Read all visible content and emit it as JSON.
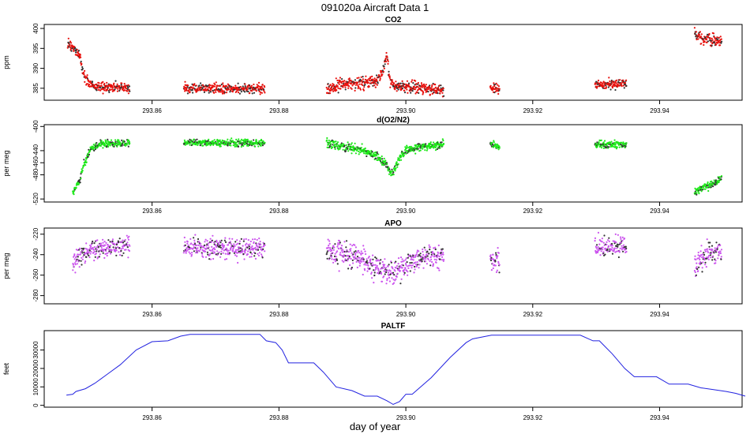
{
  "figure": {
    "title": "091020a   Aircraft Data 1",
    "xlabel": "day of year",
    "xlim": [
      293.843,
      293.953
    ],
    "xticks": [
      "293.86",
      "293.88",
      "293.90",
      "293.92",
      "293.94"
    ],
    "colors": {
      "axis": "#000000",
      "co2": "#e8100c",
      "o2n2": "#1ee81a",
      "apo": "#cc55ee",
      "paltf": "#2222e0"
    }
  },
  "chart_data": [
    {
      "type": "scatter",
      "title": "CO2",
      "ylabel": "ppm",
      "ylim": [
        382,
        401
      ],
      "yticks": [
        "385",
        "390",
        "395",
        "400"
      ],
      "color_key": "co2",
      "series": [
        {
          "name": "CO2",
          "segments": [
            {
              "x0": 293.8467,
              "x1": 293.8565,
              "points": [
                [
                  293.8467,
                  395.8
                ],
                [
                  293.8473,
                  395.3
                ],
                [
                  293.848,
                  394.5
                ],
                [
                  293.8487,
                  393.0
                ],
                [
                  293.849,
                  389.5
                ],
                [
                  293.8495,
                  387.5
                ],
                [
                  293.8505,
                  385.8
                ],
                [
                  293.852,
                  385.2
                ],
                [
                  293.8565,
                  385.0
                ]
              ],
              "noise": 0.6
            },
            {
              "x0": 293.865,
              "x1": 293.8778,
              "points": [
                [
                  293.865,
                  385.0
                ],
                [
                  293.8778,
                  384.9
                ]
              ],
              "noise": 0.6
            },
            {
              "x0": 293.8875,
              "x1": 293.906,
              "points": [
                [
                  293.8875,
                  384.6
                ],
                [
                  293.89,
                  386.0
                ],
                [
                  293.893,
                  386.3
                ],
                [
                  293.8955,
                  387.0
                ],
                [
                  293.8965,
                  389.5
                ],
                [
                  293.897,
                  393.0
                ],
                [
                  293.8975,
                  386.5
                ],
                [
                  293.899,
                  385.5
                ],
                [
                  293.902,
                  385.0
                ],
                [
                  293.906,
                  384.5
                ]
              ],
              "noise": 0.7
            },
            {
              "x0": 293.9133,
              "x1": 293.9148,
              "points": [
                [
                  293.9133,
                  384.7
                ],
                [
                  293.9148,
                  384.9
                ]
              ],
              "noise": 0.6
            },
            {
              "x0": 293.9298,
              "x1": 293.9348,
              "points": [
                [
                  293.9298,
                  385.6
                ],
                [
                  293.9348,
                  386.3
                ]
              ],
              "noise": 0.6
            },
            {
              "x0": 293.9455,
              "x1": 293.9498,
              "points": [
                [
                  293.9455,
                  399.0
                ],
                [
                  293.9465,
                  397.5
                ],
                [
                  293.9498,
                  396.9
                ]
              ],
              "noise": 0.7
            }
          ]
        }
      ]
    },
    {
      "type": "scatter",
      "title": "d(O2/N2)",
      "ylabel": "per meg",
      "ylim": [
        -525,
        -397
      ],
      "yticks": [
        "-520",
        "-480",
        "-460",
        "-440",
        "-400"
      ],
      "color_key": "o2n2",
      "series": [
        {
          "name": "d(O2/N2)",
          "segments": [
            {
              "x0": 293.8475,
              "x1": 293.8565,
              "points": [
                [
                  293.8475,
                  -510.0
                ],
                [
                  293.848,
                  -500.0
                ],
                [
                  293.8487,
                  -488.0
                ],
                [
                  293.849,
                  -470.0
                ],
                [
                  293.8505,
                  -435.0
                ],
                [
                  293.852,
                  -428.0
                ],
                [
                  293.8565,
                  -428.0
                ]
              ],
              "noise": 3.0
            },
            {
              "x0": 293.865,
              "x1": 293.8778,
              "points": [
                [
                  293.865,
                  -427.0
                ],
                [
                  293.8778,
                  -428.0
                ]
              ],
              "noise": 3.0
            },
            {
              "x0": 293.8875,
              "x1": 293.906,
              "points": [
                [
                  293.8875,
                  -428.0
                ],
                [
                  293.89,
                  -433.0
                ],
                [
                  293.8935,
                  -440.0
                ],
                [
                  293.8955,
                  -450.0
                ],
                [
                  293.897,
                  -465.0
                ],
                [
                  293.8978,
                  -480.0
                ],
                [
                  293.899,
                  -452.0
                ],
                [
                  293.9,
                  -440.0
                ],
                [
                  293.903,
                  -432.0
                ],
                [
                  293.906,
                  -430.0
                ]
              ],
              "noise": 3.5
            },
            {
              "x0": 293.9133,
              "x1": 293.9148,
              "points": [
                [
                  293.9133,
                  -430.0
                ],
                [
                  293.9148,
                  -433.0
                ]
              ],
              "noise": 3.0
            },
            {
              "x0": 293.9298,
              "x1": 293.9348,
              "points": [
                [
                  293.9298,
                  -430.0
                ],
                [
                  293.9348,
                  -430.0
                ]
              ],
              "noise": 3.0
            },
            {
              "x0": 293.9455,
              "x1": 293.9498,
              "points": [
                [
                  293.9455,
                  -510.0
                ],
                [
                  293.947,
                  -500.0
                ],
                [
                  293.9485,
                  -495.0
                ],
                [
                  293.9498,
                  -485.0
                ]
              ],
              "noise": 3.0
            }
          ]
        }
      ]
    },
    {
      "type": "scatter",
      "title": "APO",
      "ylabel": "per meg",
      "ylim": [
        -288,
        -214
      ],
      "yticks": [
        "-280",
        "-260",
        "-240",
        "-220"
      ],
      "color_key": "apo",
      "series": [
        {
          "name": "APO",
          "segments": [
            {
              "x0": 293.8475,
              "x1": 293.8565,
              "points": [
                [
                  293.8475,
                  -250.0
                ],
                [
                  293.849,
                  -238.0
                ],
                [
                  293.852,
                  -233.0
                ],
                [
                  293.8565,
                  -232.0
                ]
              ],
              "noise": 5.0
            },
            {
              "x0": 293.865,
              "x1": 293.8778,
              "points": [
                [
                  293.865,
                  -233.0
                ],
                [
                  293.8778,
                  -234.0
                ]
              ],
              "noise": 5.0
            },
            {
              "x0": 293.8875,
              "x1": 293.906,
              "points": [
                [
                  293.8875,
                  -235.0
                ],
                [
                  293.893,
                  -245.0
                ],
                [
                  293.8975,
                  -258.0
                ],
                [
                  293.9,
                  -250.0
                ],
                [
                  293.903,
                  -243.0
                ],
                [
                  293.906,
                  -241.0
                ]
              ],
              "noise": 6.0
            },
            {
              "x0": 293.9133,
              "x1": 293.9148,
              "points": [
                [
                  293.9133,
                  -248.0
                ],
                [
                  293.9148,
                  -245.0
                ]
              ],
              "noise": 5.0
            },
            {
              "x0": 293.9298,
              "x1": 293.9348,
              "points": [
                [
                  293.9298,
                  -233.0
                ],
                [
                  293.9348,
                  -232.0
                ]
              ],
              "noise": 5.0
            },
            {
              "x0": 293.9455,
              "x1": 293.9498,
              "points": [
                [
                  293.9455,
                  -250.0
                ],
                [
                  293.947,
                  -243.0
                ],
                [
                  293.9498,
                  -234.0
                ]
              ],
              "noise": 6.0
            }
          ]
        }
      ]
    },
    {
      "type": "line",
      "title": "PALTF",
      "ylabel": "feet",
      "ylim": [
        -1000,
        40500
      ],
      "yticks": [
        "0",
        "10000",
        "20000",
        "30000"
      ],
      "color_key": "paltf",
      "series": [
        {
          "name": "PALTF",
          "points": [
            [
              293.8465,
              5500
            ],
            [
              293.8475,
              6000
            ],
            [
              293.848,
              7500
            ],
            [
              293.8495,
              9000
            ],
            [
              293.851,
              12000
            ],
            [
              293.853,
              17000
            ],
            [
              293.855,
              22000
            ],
            [
              293.8575,
              30000
            ],
            [
              293.86,
              34500
            ],
            [
              293.8625,
              35000
            ],
            [
              293.8645,
              37500
            ],
            [
              293.866,
              38500
            ],
            [
              293.877,
              38500
            ],
            [
              293.878,
              35000
            ],
            [
              293.8795,
              34000
            ],
            [
              293.8805,
              30000
            ],
            [
              293.8815,
              23000
            ],
            [
              293.8855,
              23000
            ],
            [
              293.887,
              18000
            ],
            [
              293.889,
              10000
            ],
            [
              293.8915,
              8000
            ],
            [
              293.8935,
              5000
            ],
            [
              293.8955,
              5000
            ],
            [
              293.897,
              2500
            ],
            [
              293.898,
              500
            ],
            [
              293.899,
              2000
            ],
            [
              293.9,
              6000
            ],
            [
              293.901,
              6000
            ],
            [
              293.904,
              15000
            ],
            [
              293.907,
              26000
            ],
            [
              293.9095,
              34000
            ],
            [
              293.9105,
              36000
            ],
            [
              293.9135,
              38000
            ],
            [
              293.9275,
              38000
            ],
            [
              293.9295,
              35000
            ],
            [
              293.9305,
              35000
            ],
            [
              293.9325,
              28000
            ],
            [
              293.9345,
              20000
            ],
            [
              293.936,
              15500
            ],
            [
              293.9395,
              15500
            ],
            [
              293.9415,
              11500
            ],
            [
              293.9445,
              11500
            ],
            [
              293.9465,
              9500
            ],
            [
              293.9485,
              8500
            ],
            [
              293.9505,
              7500
            ],
            [
              293.952,
              6500
            ],
            [
              293.9535,
              5000
            ]
          ]
        }
      ]
    }
  ]
}
